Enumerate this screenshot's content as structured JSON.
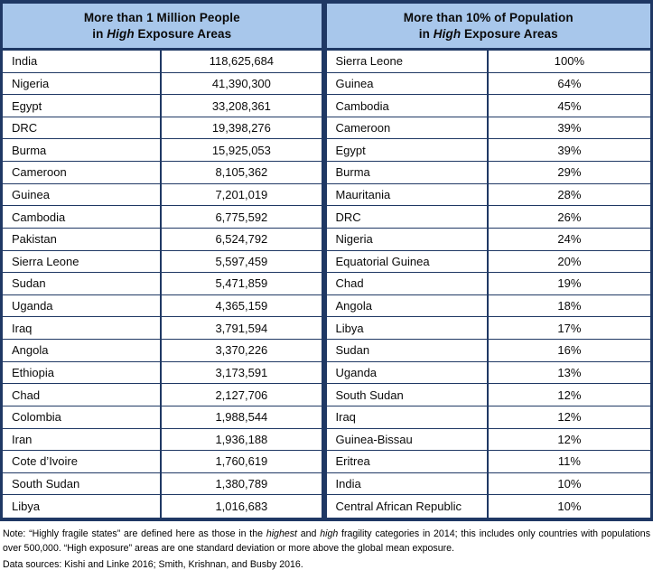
{
  "colors": {
    "border_navy": "#1F3864",
    "header_fill": "#A8C7EB",
    "text": "#0a0a0a"
  },
  "left_table": {
    "header_line1": "More than 1 Million People",
    "header_line2_segments": [
      {
        "text": "in "
      },
      {
        "text": "High",
        "italic": true
      },
      {
        "text": " Exposure Areas"
      }
    ],
    "rows": [
      {
        "country": "India",
        "value": "118,625,684"
      },
      {
        "country": "Nigeria",
        "value": "41,390,300"
      },
      {
        "country": "Egypt",
        "value": "33,208,361"
      },
      {
        "country": "DRC",
        "value": "19,398,276"
      },
      {
        "country": "Burma",
        "value": "15,925,053"
      },
      {
        "country": "Cameroon",
        "value": "8,105,362"
      },
      {
        "country": "Guinea",
        "value": "7,201,019"
      },
      {
        "country": "Cambodia",
        "value": "6,775,592"
      },
      {
        "country": "Pakistan",
        "value": "6,524,792"
      },
      {
        "country": "Sierra Leone",
        "value": "5,597,459"
      },
      {
        "country": "Sudan",
        "value": "5,471,859"
      },
      {
        "country": "Uganda",
        "value": "4,365,159"
      },
      {
        "country": "Iraq",
        "value": "3,791,594"
      },
      {
        "country": "Angola",
        "value": "3,370,226"
      },
      {
        "country": "Ethiopia",
        "value": "3,173,591"
      },
      {
        "country": "Chad",
        "value": "2,127,706"
      },
      {
        "country": "Colombia",
        "value": "1,988,544"
      },
      {
        "country": "Iran",
        "value": "1,936,188"
      },
      {
        "country": "Cote d’Ivoire",
        "value": "1,760,619"
      },
      {
        "country": "South Sudan",
        "value": "1,380,789"
      },
      {
        "country": "Libya",
        "value": "1,016,683"
      }
    ]
  },
  "right_table": {
    "header_line1": "More than 10% of Population",
    "header_line2_segments": [
      {
        "text": "in "
      },
      {
        "text": "High",
        "italic": true
      },
      {
        "text": " Exposure Areas"
      }
    ],
    "rows": [
      {
        "country": "Sierra Leone",
        "value": "100%"
      },
      {
        "country": "Guinea",
        "value": "64%"
      },
      {
        "country": "Cambodia",
        "value": "45%"
      },
      {
        "country": "Cameroon",
        "value": "39%"
      },
      {
        "country": "Egypt",
        "value": "39%"
      },
      {
        "country": "Burma",
        "value": "29%"
      },
      {
        "country": "Mauritania",
        "value": "28%"
      },
      {
        "country": "DRC",
        "value": "26%"
      },
      {
        "country": "Nigeria",
        "value": "24%"
      },
      {
        "country": "Equatorial Guinea",
        "value": "20%"
      },
      {
        "country": "Chad",
        "value": "19%"
      },
      {
        "country": "Angola",
        "value": "18%"
      },
      {
        "country": "Libya",
        "value": "17%"
      },
      {
        "country": "Sudan",
        "value": "16%"
      },
      {
        "country": "Uganda",
        "value": "13%"
      },
      {
        "country": "South Sudan",
        "value": "12%"
      },
      {
        "country": "Iraq",
        "value": "12%"
      },
      {
        "country": "Guinea-Bissau",
        "value": "12%"
      },
      {
        "country": "Eritrea",
        "value": "11%"
      },
      {
        "country": "India",
        "value": "10%"
      },
      {
        "country": "Central African Republic",
        "value": "10%"
      }
    ]
  },
  "notes": {
    "note_segments": [
      {
        "text": "Note: “Highly fragile states” are defined here as those in the "
      },
      {
        "text": "highest",
        "italic": true
      },
      {
        "text": " and "
      },
      {
        "text": "high",
        "italic": true
      },
      {
        "text": " fragility categories in 2014; this includes only countries with populations over 500,000. “High exposure” areas are one standard deviation or more above the global mean exposure."
      }
    ],
    "data_sources": "Data sources: Kishi and Linke 2016; Smith, Krishnan, and Busby 2016."
  }
}
